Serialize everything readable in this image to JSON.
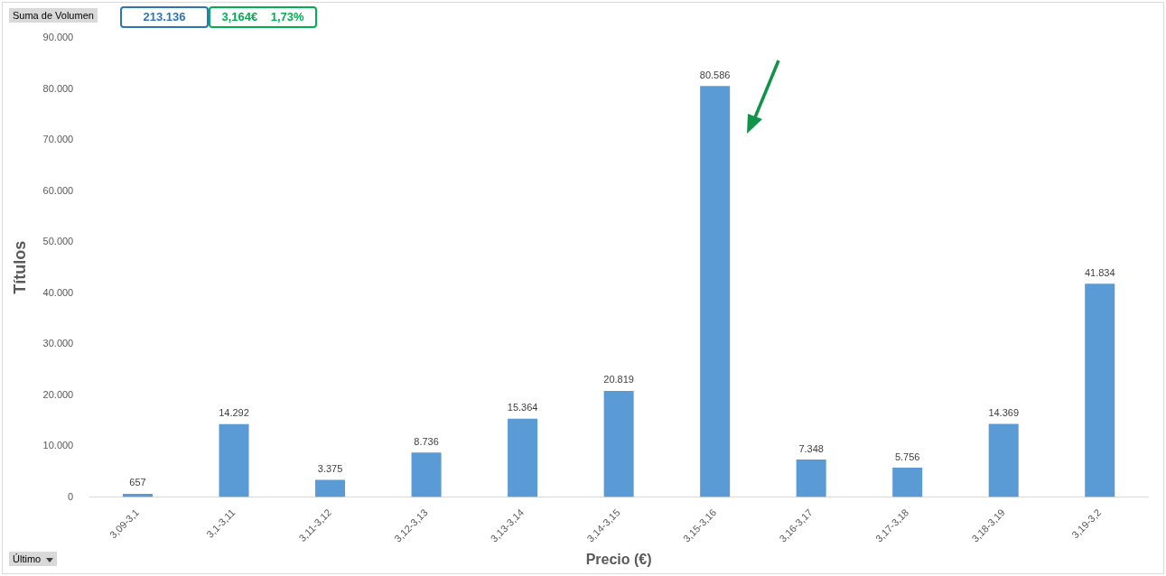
{
  "chart_data": {
    "type": "bar",
    "xlabel": "Precio (€)",
    "ylabel": "Títulos",
    "categories": [
      "3,09-3,1",
      "3,1-3,11",
      "3,11-3,12",
      "3,12-3,13",
      "3,13-3,14",
      "3,14-3,15",
      "3,15-3,16",
      "3,16-3,17",
      "3,17-3,18",
      "3,18-3,19",
      "3,19-3,2"
    ],
    "values": [
      657,
      14292,
      3375,
      8736,
      15364,
      20819,
      80586,
      7348,
      5756,
      14369,
      41834
    ],
    "value_labels": [
      "657",
      "14.292",
      "3.375",
      "8.736",
      "15.364",
      "20.819",
      "80.586",
      "7.348",
      "5.756",
      "14.369",
      "41.834"
    ],
    "color": "#5b9bd5",
    "ylim": [
      0,
      90000
    ],
    "yticks": [
      {
        "value": 0,
        "label": "0"
      },
      {
        "value": 10000,
        "label": "10.000"
      },
      {
        "value": 20000,
        "label": "20.000"
      },
      {
        "value": 30000,
        "label": "30.000"
      },
      {
        "value": 40000,
        "label": "40.000"
      },
      {
        "value": 50000,
        "label": "50.000"
      },
      {
        "value": 60000,
        "label": "60.000"
      },
      {
        "value": 70000,
        "label": "70.000"
      },
      {
        "value": 80000,
        "label": "80.000"
      },
      {
        "value": 90000,
        "label": "90.000"
      }
    ],
    "grid": false,
    "legend": false,
    "annotations": [
      "Suma de Volumen",
      "213.136",
      "3,164€    1,73%",
      "Último"
    ]
  }
}
